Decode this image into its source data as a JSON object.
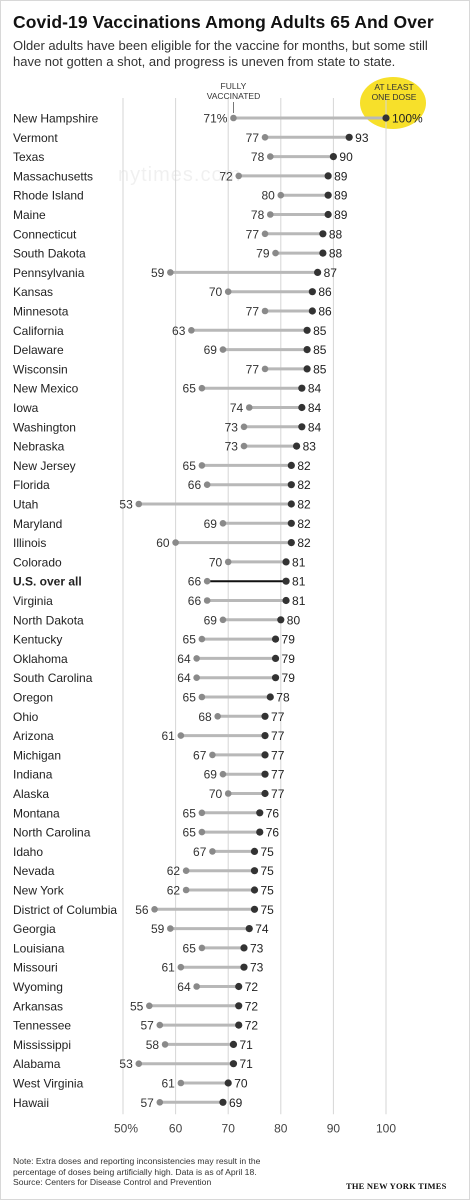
{
  "title": "Covid-19 Vaccinations Among Adults 65 And Over",
  "subtitle": "Older adults have been eligible for the vaccine for months, but some still have not gotten a shot, and progress is uneven from state to state.",
  "header_labels": {
    "fully_vaccinated": [
      "FULLY",
      "VACCINATED"
    ],
    "at_least_one_dose": [
      "AT LEAST",
      "ONE DOSE"
    ]
  },
  "watermark": "nytimes.com",
  "note_lines": [
    "Note: Extra doses and reporting inconsistencies may result in the",
    "percentage of doses being artificially high. Data is as of April 18.",
    "Source: Centers for Disease Control and Prevention"
  ],
  "credit": "THE NEW YORK TIMES",
  "colors": {
    "fully_dot": "#8a8a8a",
    "one_dose_dot": "#333333",
    "range_line": "#b8b8b8",
    "us_line": "#111111",
    "highlight": "#f7e02a"
  },
  "chart_data": {
    "type": "dumbbell",
    "xlim": [
      50,
      100
    ],
    "xticks": [
      "50%",
      "60",
      "70",
      "80",
      "90",
      "100"
    ],
    "tick_values": [
      50,
      60,
      70,
      80,
      90,
      100
    ],
    "grid": true,
    "highlight_row": "U.S. over all",
    "series": [
      {
        "name": "FULLY VACCINATED",
        "key": "fully"
      },
      {
        "name": "AT LEAST ONE DOSE",
        "key": "one_dose"
      }
    ],
    "rows": [
      {
        "label": "New Hampshire",
        "fully": 71,
        "one_dose": 100,
        "fully_text": "71%",
        "one_dose_text": "100%"
      },
      {
        "label": "Vermont",
        "fully": 77,
        "one_dose": 93
      },
      {
        "label": "Texas",
        "fully": 78,
        "one_dose": 90
      },
      {
        "label": "Massachusetts",
        "fully": 72,
        "one_dose": 89
      },
      {
        "label": "Rhode Island",
        "fully": 80,
        "one_dose": 89
      },
      {
        "label": "Maine",
        "fully": 78,
        "one_dose": 89
      },
      {
        "label": "Connecticut",
        "fully": 77,
        "one_dose": 88
      },
      {
        "label": "South Dakota",
        "fully": 79,
        "one_dose": 88
      },
      {
        "label": "Pennsylvania",
        "fully": 59,
        "one_dose": 87
      },
      {
        "label": "Kansas",
        "fully": 70,
        "one_dose": 86
      },
      {
        "label": "Minnesota",
        "fully": 77,
        "one_dose": 86
      },
      {
        "label": "California",
        "fully": 63,
        "one_dose": 85
      },
      {
        "label": "Delaware",
        "fully": 69,
        "one_dose": 85
      },
      {
        "label": "Wisconsin",
        "fully": 77,
        "one_dose": 85
      },
      {
        "label": "New Mexico",
        "fully": 65,
        "one_dose": 84
      },
      {
        "label": "Iowa",
        "fully": 74,
        "one_dose": 84
      },
      {
        "label": "Washington",
        "fully": 73,
        "one_dose": 84
      },
      {
        "label": "Nebraska",
        "fully": 73,
        "one_dose": 83
      },
      {
        "label": "New Jersey",
        "fully": 65,
        "one_dose": 82
      },
      {
        "label": "Florida",
        "fully": 66,
        "one_dose": 82
      },
      {
        "label": "Utah",
        "fully": 53,
        "one_dose": 82
      },
      {
        "label": "Maryland",
        "fully": 69,
        "one_dose": 82
      },
      {
        "label": "Illinois",
        "fully": 60,
        "one_dose": 82
      },
      {
        "label": "Colorado",
        "fully": 70,
        "one_dose": 81
      },
      {
        "label": "U.S. over all",
        "fully": 66,
        "one_dose": 81
      },
      {
        "label": "Virginia",
        "fully": 66,
        "one_dose": 81
      },
      {
        "label": "North Dakota",
        "fully": 69,
        "one_dose": 80
      },
      {
        "label": "Kentucky",
        "fully": 65,
        "one_dose": 79
      },
      {
        "label": "Oklahoma",
        "fully": 64,
        "one_dose": 79
      },
      {
        "label": "South Carolina",
        "fully": 64,
        "one_dose": 79
      },
      {
        "label": "Oregon",
        "fully": 65,
        "one_dose": 78
      },
      {
        "label": "Ohio",
        "fully": 68,
        "one_dose": 77
      },
      {
        "label": "Arizona",
        "fully": 61,
        "one_dose": 77
      },
      {
        "label": "Michigan",
        "fully": 67,
        "one_dose": 77
      },
      {
        "label": "Indiana",
        "fully": 69,
        "one_dose": 77
      },
      {
        "label": "Alaska",
        "fully": 70,
        "one_dose": 77
      },
      {
        "label": "Montana",
        "fully": 65,
        "one_dose": 76
      },
      {
        "label": "North Carolina",
        "fully": 65,
        "one_dose": 76
      },
      {
        "label": "Idaho",
        "fully": 67,
        "one_dose": 75
      },
      {
        "label": "Nevada",
        "fully": 62,
        "one_dose": 75
      },
      {
        "label": "New York",
        "fully": 62,
        "one_dose": 75
      },
      {
        "label": "District of Columbia",
        "fully": 56,
        "one_dose": 75
      },
      {
        "label": "Georgia",
        "fully": 59,
        "one_dose": 74
      },
      {
        "label": "Louisiana",
        "fully": 65,
        "one_dose": 73
      },
      {
        "label": "Missouri",
        "fully": 61,
        "one_dose": 73
      },
      {
        "label": "Wyoming",
        "fully": 64,
        "one_dose": 72
      },
      {
        "label": "Arkansas",
        "fully": 55,
        "one_dose": 72
      },
      {
        "label": "Tennessee",
        "fully": 57,
        "one_dose": 72
      },
      {
        "label": "Mississippi",
        "fully": 58,
        "one_dose": 71
      },
      {
        "label": "Alabama",
        "fully": 53,
        "one_dose": 71
      },
      {
        "label": "West Virginia",
        "fully": 61,
        "one_dose": 70
      },
      {
        "label": "Hawaii",
        "fully": 57,
        "one_dose": 69
      }
    ]
  }
}
